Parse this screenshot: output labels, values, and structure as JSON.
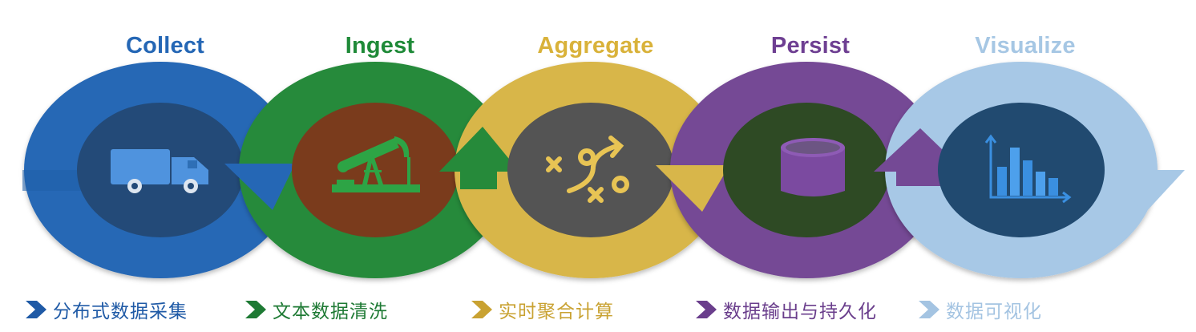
{
  "stages": [
    {
      "key": "collect",
      "title": "Collect",
      "caption": "分布式数据采集",
      "icon": "truck-icon",
      "ring_color": "#2567b5",
      "title_color": "#2567b5",
      "caption_color": "#1f5aa6",
      "inner_color": "#234a78",
      "icon_color": "#4f93de"
    },
    {
      "key": "ingest",
      "title": "Ingest",
      "caption": "文本数据清洗",
      "icon": "oil-pump-icon",
      "ring_color": "#268a3a",
      "title_color": "#1f8a38",
      "caption_color": "#1e7a34",
      "inner_color": "#7a3b1c",
      "icon_color": "#2da445"
    },
    {
      "key": "aggregate",
      "title": "Aggregate",
      "caption": "实时聚合计算",
      "icon": "strategy-play-icon",
      "ring_color": "#d8b64a",
      "title_color": "#d9b23a",
      "caption_color": "#c9a232",
      "inner_color": "#545454",
      "icon_color": "#e8c454"
    },
    {
      "key": "persist",
      "title": "Persist",
      "caption": "数据输出与持久化",
      "icon": "database-icon",
      "ring_color": "#744995",
      "title_color": "#6e3f92",
      "caption_color": "#6a3e8c",
      "inner_color": "#2e4a24",
      "icon_color": "#7b4aa0"
    },
    {
      "key": "visualize",
      "title": "Visualize",
      "caption": "数据可视化",
      "icon": "bar-chart-icon",
      "ring_color": "#a7c8e6",
      "title_color": "#a6c7e4",
      "caption_color": "#a4c4e2",
      "inner_color": "#214a70",
      "icon_color": "#3a8fe0"
    }
  ]
}
